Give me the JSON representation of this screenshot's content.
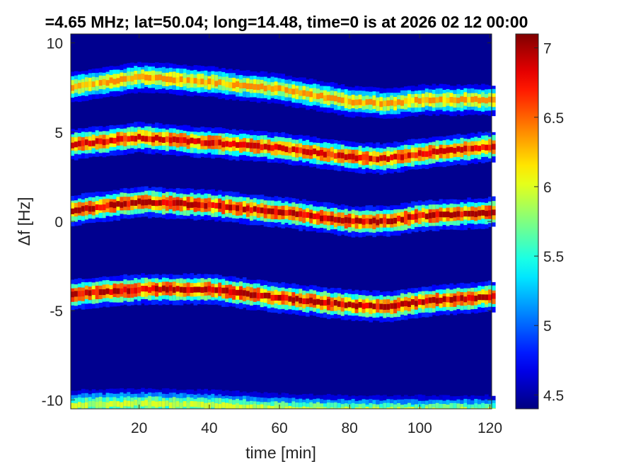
{
  "chart_data": {
    "type": "heatmap",
    "title": "=4.65 MHz;  lat=50.04; long=14.48, time=0 is at 2026 02 12 00:00",
    "xlabel": "time [min]",
    "ylabel": "Δf [Hz]",
    "xlim": [
      0.5,
      120.5
    ],
    "ylim": [
      -10.5,
      10.5
    ],
    "x_ticks": [
      20,
      40,
      60,
      80,
      100,
      120
    ],
    "x_tick_labels": [
      "20",
      "40",
      "60",
      "80",
      "100",
      "120"
    ],
    "y_ticks": [
      10,
      5,
      0,
      -5,
      -10
    ],
    "y_tick_labels": [
      "10",
      "5",
      "0",
      "-5",
      "-10"
    ],
    "colorbar": {
      "colormap": "jet",
      "range": [
        4.4,
        7.1
      ],
      "ticks": [
        7,
        6.5,
        6,
        5.5,
        5,
        4.5
      ],
      "tick_labels": [
        "7",
        "6.5",
        "6",
        "5.5",
        "5",
        "4.5"
      ]
    },
    "background_value": 4.4,
    "band_time_points": [
      0,
      20,
      40,
      60,
      80,
      90,
      100,
      120
    ],
    "series": [
      {
        "center_hz": [
          7.5,
          8.1,
          7.8,
          7.4,
          6.7,
          6.6,
          6.8,
          6.8
        ],
        "peak_value": 6.4
      },
      {
        "center_hz": [
          4.3,
          4.7,
          4.4,
          4.1,
          3.6,
          3.5,
          3.8,
          4.2
        ],
        "peak_value": 6.9
      },
      {
        "center_hz": [
          0.6,
          1.1,
          0.9,
          0.5,
          0.0,
          0.0,
          0.3,
          0.5
        ],
        "peak_value": 7.0
      },
      {
        "center_hz": [
          -4.1,
          -3.8,
          -3.8,
          -4.3,
          -4.7,
          -4.8,
          -4.5,
          -4.2
        ],
        "peak_value": 7.0
      },
      {
        "center_hz": [
          -10.3,
          -10.2,
          -10.3,
          -10.5,
          -10.6,
          -10.6,
          -10.6,
          -10.6
        ],
        "peak_value": 6.0
      }
    ]
  }
}
